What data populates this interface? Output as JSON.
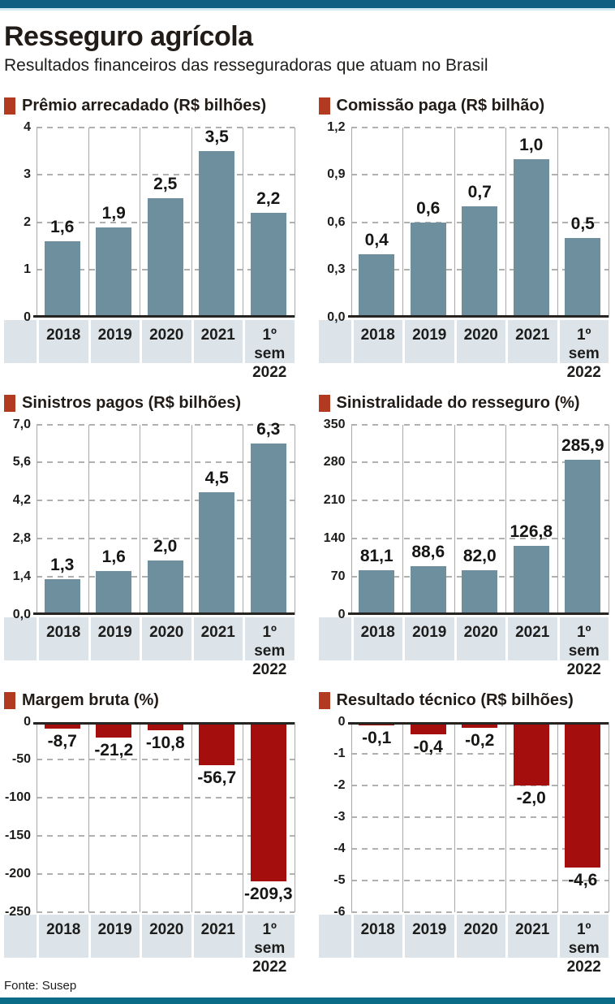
{
  "page": {
    "title": "Resseguro agrícola",
    "subtitle": "Resultados financeiros das resseguradoras que atuam no Brasil",
    "source": "Fonte: Susep"
  },
  "colors": {
    "top_rule_teal": "#0d5e80",
    "top_rule_light": "#cfe8f2",
    "bottom_rule_teal": "#0a6c86",
    "bullet_red": "#b23a20",
    "bar_blue": "#6e8f9d",
    "bar_red": "#a40f0e",
    "band_background": "#dce4ea"
  },
  "categories": [
    "2018",
    "2019",
    "2020",
    "2021",
    "1º sem 2022"
  ],
  "chart_data": [
    {
      "type": "bar",
      "title": "Prêmio arrecadado (R$ bilhões)",
      "categories": [
        "2018",
        "2019",
        "2020",
        "2021",
        "1º sem 2022"
      ],
      "values": [
        1.6,
        1.9,
        2.5,
        3.5,
        2.2
      ],
      "value_labels": [
        "1,6",
        "1,9",
        "2,5",
        "3,5",
        "2,2"
      ],
      "yticks": [
        "4",
        "3",
        "2",
        "1",
        "0"
      ],
      "ytick_values": [
        4,
        3,
        2,
        1,
        0
      ],
      "ylim": [
        0,
        4
      ],
      "bar_color_key": "bar_blue",
      "grid": true,
      "legend_position": "none"
    },
    {
      "type": "bar",
      "title": "Comissão paga (R$ bilhão)",
      "categories": [
        "2018",
        "2019",
        "2020",
        "2021",
        "1º sem 2022"
      ],
      "values": [
        0.4,
        0.6,
        0.7,
        1.0,
        0.5
      ],
      "value_labels": [
        "0,4",
        "0,6",
        "0,7",
        "1,0",
        "0,5"
      ],
      "yticks": [
        "1,2",
        "0,9",
        "0,6",
        "0,3",
        "0,0"
      ],
      "ytick_values": [
        1.2,
        0.9,
        0.6,
        0.3,
        0
      ],
      "ylim": [
        0,
        1.2
      ],
      "bar_color_key": "bar_blue",
      "grid": true,
      "legend_position": "none"
    },
    {
      "type": "bar",
      "title": "Sinistros pagos (R$ bilhões)",
      "categories": [
        "2018",
        "2019",
        "2020",
        "2021",
        "1º sem 2022"
      ],
      "values": [
        1.3,
        1.6,
        2.0,
        4.5,
        6.3
      ],
      "value_labels": [
        "1,3",
        "1,6",
        "2,0",
        "4,5",
        "6,3"
      ],
      "yticks": [
        "7,0",
        "5,6",
        "4,2",
        "2,8",
        "1,4",
        "0,0"
      ],
      "ytick_values": [
        7.0,
        5.6,
        4.2,
        2.8,
        1.4,
        0
      ],
      "ylim": [
        0,
        7
      ],
      "bar_color_key": "bar_blue",
      "grid": true,
      "legend_position": "none"
    },
    {
      "type": "bar",
      "title": "Sinistralidade do resseguro (%)",
      "categories": [
        "2018",
        "2019",
        "2020",
        "2021",
        "1º sem 2022"
      ],
      "values": [
        81.1,
        88.6,
        82.0,
        126.8,
        285.9
      ],
      "value_labels": [
        "81,1",
        "88,6",
        "82,0",
        "126,8",
        "285,9"
      ],
      "yticks": [
        "350",
        "280",
        "210",
        "140",
        "70",
        "0"
      ],
      "ytick_values": [
        350,
        280,
        210,
        140,
        70,
        0
      ],
      "ylim": [
        0,
        350
      ],
      "bar_color_key": "bar_blue",
      "grid": true,
      "legend_position": "none"
    },
    {
      "type": "bar",
      "title": "Margem bruta (%)",
      "categories": [
        "2018",
        "2019",
        "2020",
        "2021",
        "1º sem 2022"
      ],
      "values": [
        -8.7,
        -21.2,
        -10.8,
        -56.7,
        -209.3
      ],
      "value_labels": [
        "-8,7",
        "-21,2",
        "-10,8",
        "-56,7",
        "-209,3"
      ],
      "yticks": [
        "0",
        "-50",
        "-100",
        "-150",
        "-200",
        "-250"
      ],
      "ytick_values": [
        0,
        -50,
        -100,
        -150,
        -200,
        -250
      ],
      "ylim": [
        -250,
        0
      ],
      "bar_color_key": "bar_red",
      "grid": true,
      "legend_position": "none"
    },
    {
      "type": "bar",
      "title": "Resultado técnico (R$ bilhões)",
      "categories": [
        "2018",
        "2019",
        "2020",
        "2021",
        "1º sem 2022"
      ],
      "values": [
        -0.1,
        -0.4,
        -0.2,
        -2.0,
        -4.6
      ],
      "value_labels": [
        "-0,1",
        "-0,4",
        "-0,2",
        "-2,0",
        "-4,6"
      ],
      "yticks": [
        "0",
        "-1",
        "-2",
        "-3",
        "-4",
        "-5",
        "-6"
      ],
      "ytick_values": [
        0,
        -1,
        -2,
        -3,
        -4,
        -5,
        -6
      ],
      "ylim": [
        -6,
        0
      ],
      "bar_color_key": "bar_red",
      "grid": true,
      "legend_position": "none"
    }
  ]
}
